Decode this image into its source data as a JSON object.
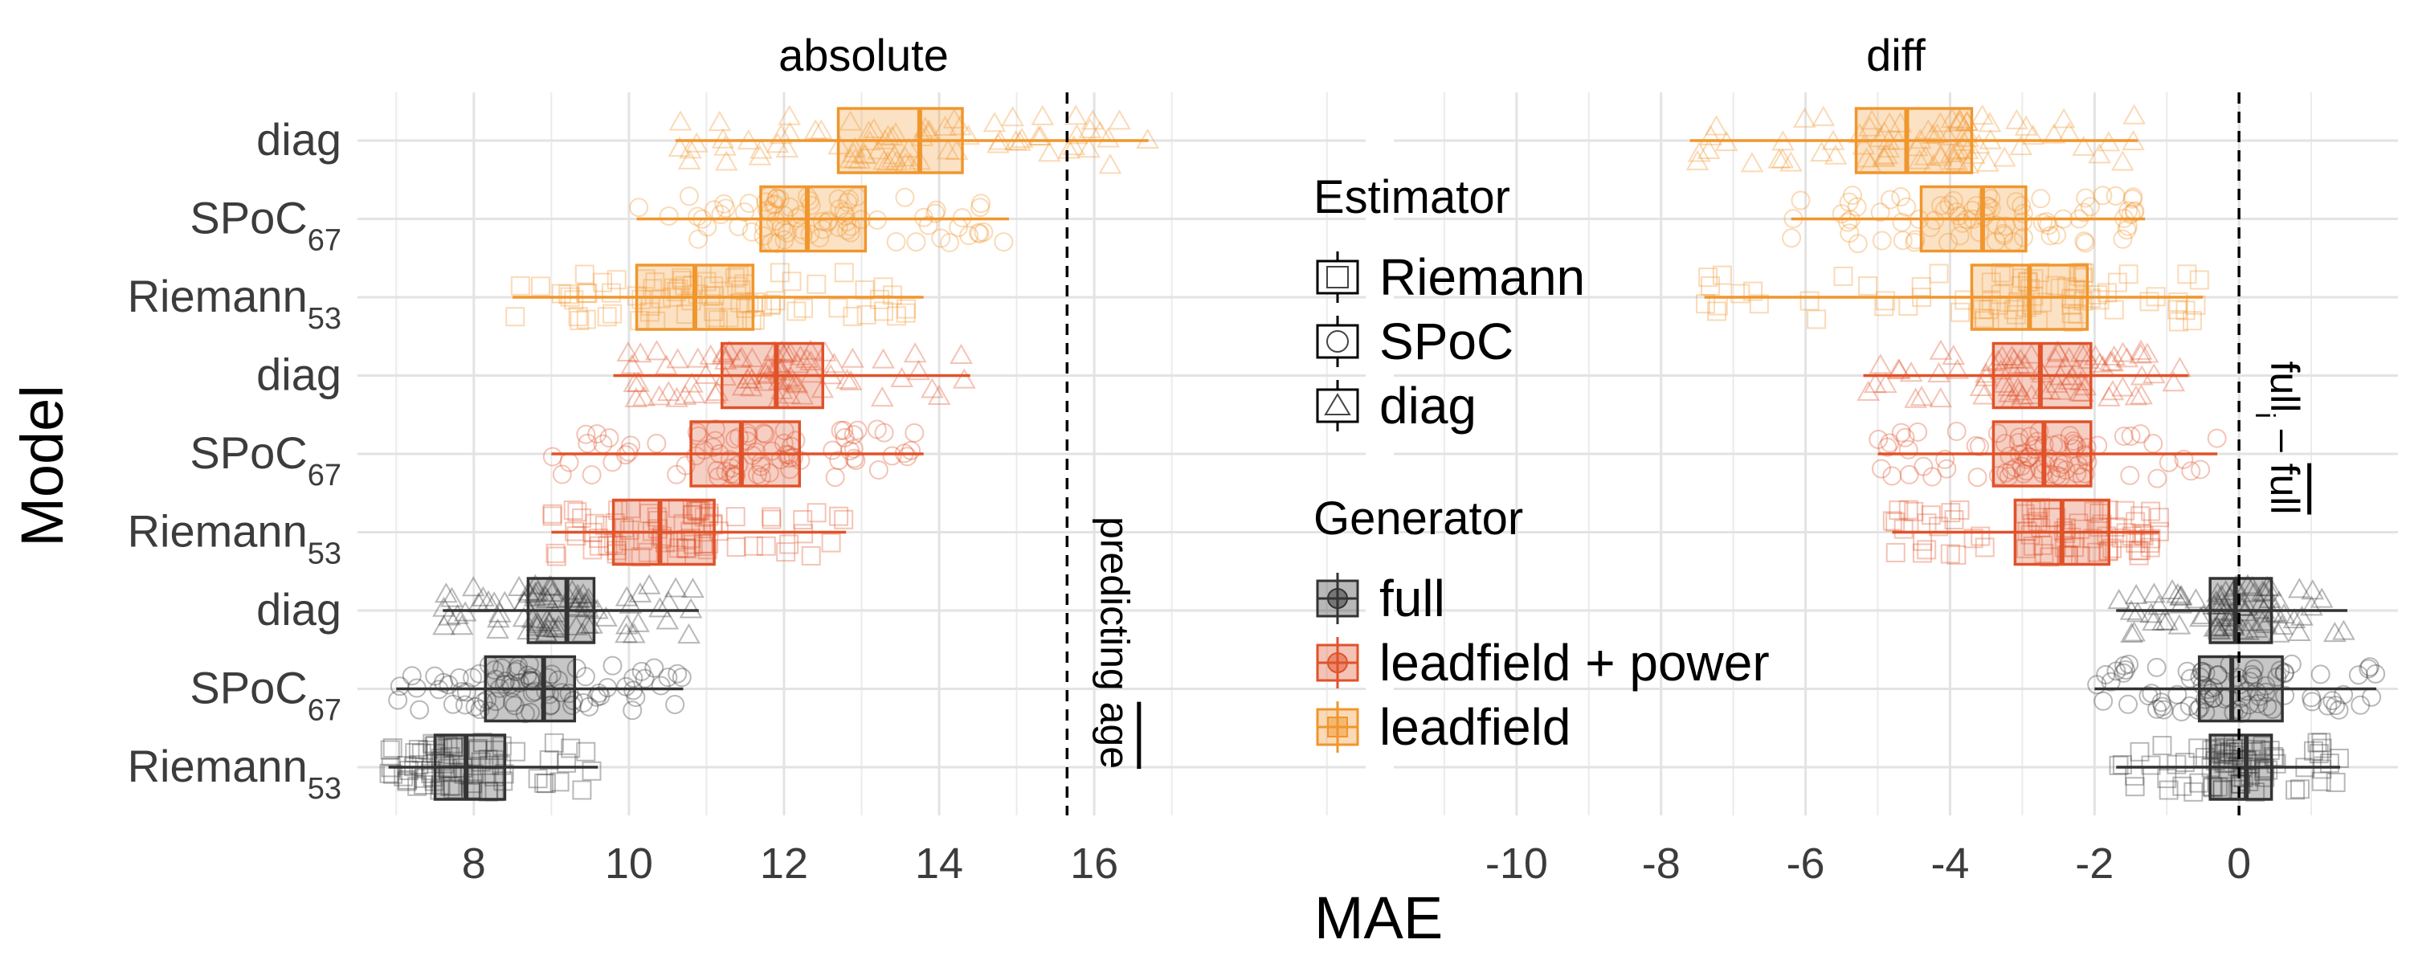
{
  "chart_data": {
    "type": "boxplot",
    "ylabel": "Model",
    "xlabel": "MAE",
    "rows": [
      {
        "model": "diag",
        "subscript": "",
        "generator": "leadfield",
        "estimator": "diag"
      },
      {
        "model": "SPoC",
        "subscript": "67",
        "generator": "leadfield",
        "estimator": "SPoC"
      },
      {
        "model": "Riemann",
        "subscript": "53",
        "generator": "leadfield",
        "estimator": "Riemann"
      },
      {
        "model": "diag",
        "subscript": "",
        "generator": "leadfield + power",
        "estimator": "diag"
      },
      {
        "model": "SPoC",
        "subscript": "67",
        "generator": "leadfield + power",
        "estimator": "SPoC"
      },
      {
        "model": "Riemann",
        "subscript": "53",
        "generator": "leadfield + power",
        "estimator": "Riemann"
      },
      {
        "model": "diag",
        "subscript": "",
        "generator": "full",
        "estimator": "diag"
      },
      {
        "model": "SPoC",
        "subscript": "67",
        "generator": "full",
        "estimator": "SPoC"
      },
      {
        "model": "Riemann",
        "subscript": "53",
        "generator": "full",
        "estimator": "Riemann"
      }
    ],
    "panels": [
      {
        "title": "absolute",
        "xlim": [
          6.5,
          19.5
        ],
        "ticks": [
          8,
          10,
          12,
          14,
          16
        ],
        "tick_labels": [
          "8",
          "10",
          "12",
          "14",
          "16"
        ],
        "reference_line": {
          "x": 15.65,
          "label_parts": [
            "predicting ",
            "age"
          ],
          "overline_part": 1
        },
        "boxes": [
          {
            "whisker_low": 10.6,
            "q1": 12.7,
            "median": 13.75,
            "q3": 14.3,
            "whisker_high": 16.7
          },
          {
            "whisker_low": 10.1,
            "q1": 11.7,
            "median": 12.3,
            "q3": 13.05,
            "whisker_high": 14.9
          },
          {
            "whisker_low": 8.5,
            "q1": 10.1,
            "median": 10.85,
            "q3": 11.6,
            "whisker_high": 13.8
          },
          {
            "whisker_low": 9.8,
            "q1": 11.2,
            "median": 11.9,
            "q3": 12.5,
            "whisker_high": 14.4
          },
          {
            "whisker_low": 9.0,
            "q1": 10.8,
            "median": 11.45,
            "q3": 12.2,
            "whisker_high": 13.8
          },
          {
            "whisker_low": 9.0,
            "q1": 9.8,
            "median": 10.4,
            "q3": 11.1,
            "whisker_high": 12.8
          },
          {
            "whisker_low": 7.6,
            "q1": 8.7,
            "median": 9.2,
            "q3": 9.55,
            "whisker_high": 10.9
          },
          {
            "whisker_low": 7.0,
            "q1": 8.15,
            "median": 8.9,
            "q3": 9.3,
            "whisker_high": 10.7
          },
          {
            "whisker_low": 6.9,
            "q1": 7.5,
            "median": 7.9,
            "q3": 8.4,
            "whisker_high": 9.6
          }
        ]
      },
      {
        "title": "diff",
        "xlim": [
          -11.7,
          2.2
        ],
        "ticks": [
          -10,
          -8,
          -6,
          -4,
          -2,
          0
        ],
        "tick_labels": [
          "-10",
          "-8",
          "-6",
          "-4",
          "-2",
          "0"
        ],
        "reference_line": {
          "x": 0,
          "label_parts": [
            "full",
            "i",
            " – ",
            "full"
          ],
          "overline_part": 3
        },
        "boxes": [
          {
            "whisker_low": -7.6,
            "q1": -5.3,
            "median": -4.6,
            "q3": -3.7,
            "whisker_high": -1.4
          },
          {
            "whisker_low": -6.2,
            "q1": -4.4,
            "median": -3.55,
            "q3": -2.95,
            "whisker_high": -1.3
          },
          {
            "whisker_low": -7.4,
            "q1": -3.7,
            "median": -2.9,
            "q3": -2.1,
            "whisker_high": -0.5
          },
          {
            "whisker_low": -5.2,
            "q1": -3.4,
            "median": -2.75,
            "q3": -2.05,
            "whisker_high": -0.7
          },
          {
            "whisker_low": -5.0,
            "q1": -3.4,
            "median": -2.7,
            "q3": -2.05,
            "whisker_high": -0.3
          },
          {
            "whisker_low": -4.8,
            "q1": -3.1,
            "median": -2.45,
            "q3": -1.8,
            "whisker_high": -1.1
          },
          {
            "whisker_low": -1.7,
            "q1": -0.4,
            "median": -0.05,
            "q3": 0.45,
            "whisker_high": 1.5
          },
          {
            "whisker_low": -2.0,
            "q1": -0.55,
            "median": -0.1,
            "q3": 0.6,
            "whisker_high": 1.9
          },
          {
            "whisker_low": -1.7,
            "q1": -0.4,
            "median": 0.1,
            "q3": 0.45,
            "whisker_high": 1.4
          }
        ]
      }
    ],
    "legend": {
      "estimator_title": "Estimator",
      "estimators": [
        {
          "label": "Riemann",
          "shape": "square"
        },
        {
          "label": "SPoC",
          "shape": "circle"
        },
        {
          "label": "diag",
          "shape": "triangle"
        }
      ],
      "generator_title": "Generator",
      "generators": [
        {
          "label": "full",
          "color": "#333333"
        },
        {
          "label": "leadfield + power",
          "color": "#E0522A"
        },
        {
          "label": "leadfield",
          "color": "#F0962D"
        }
      ]
    },
    "colors": {
      "full": "#333333",
      "leadfield + power": "#E0522A",
      "leadfield": "#F0962D"
    },
    "shapes": {
      "Riemann": "square",
      "SPoC": "circle",
      "diag": "triangle"
    },
    "grid": true,
    "legend_position": "between panels, center"
  }
}
